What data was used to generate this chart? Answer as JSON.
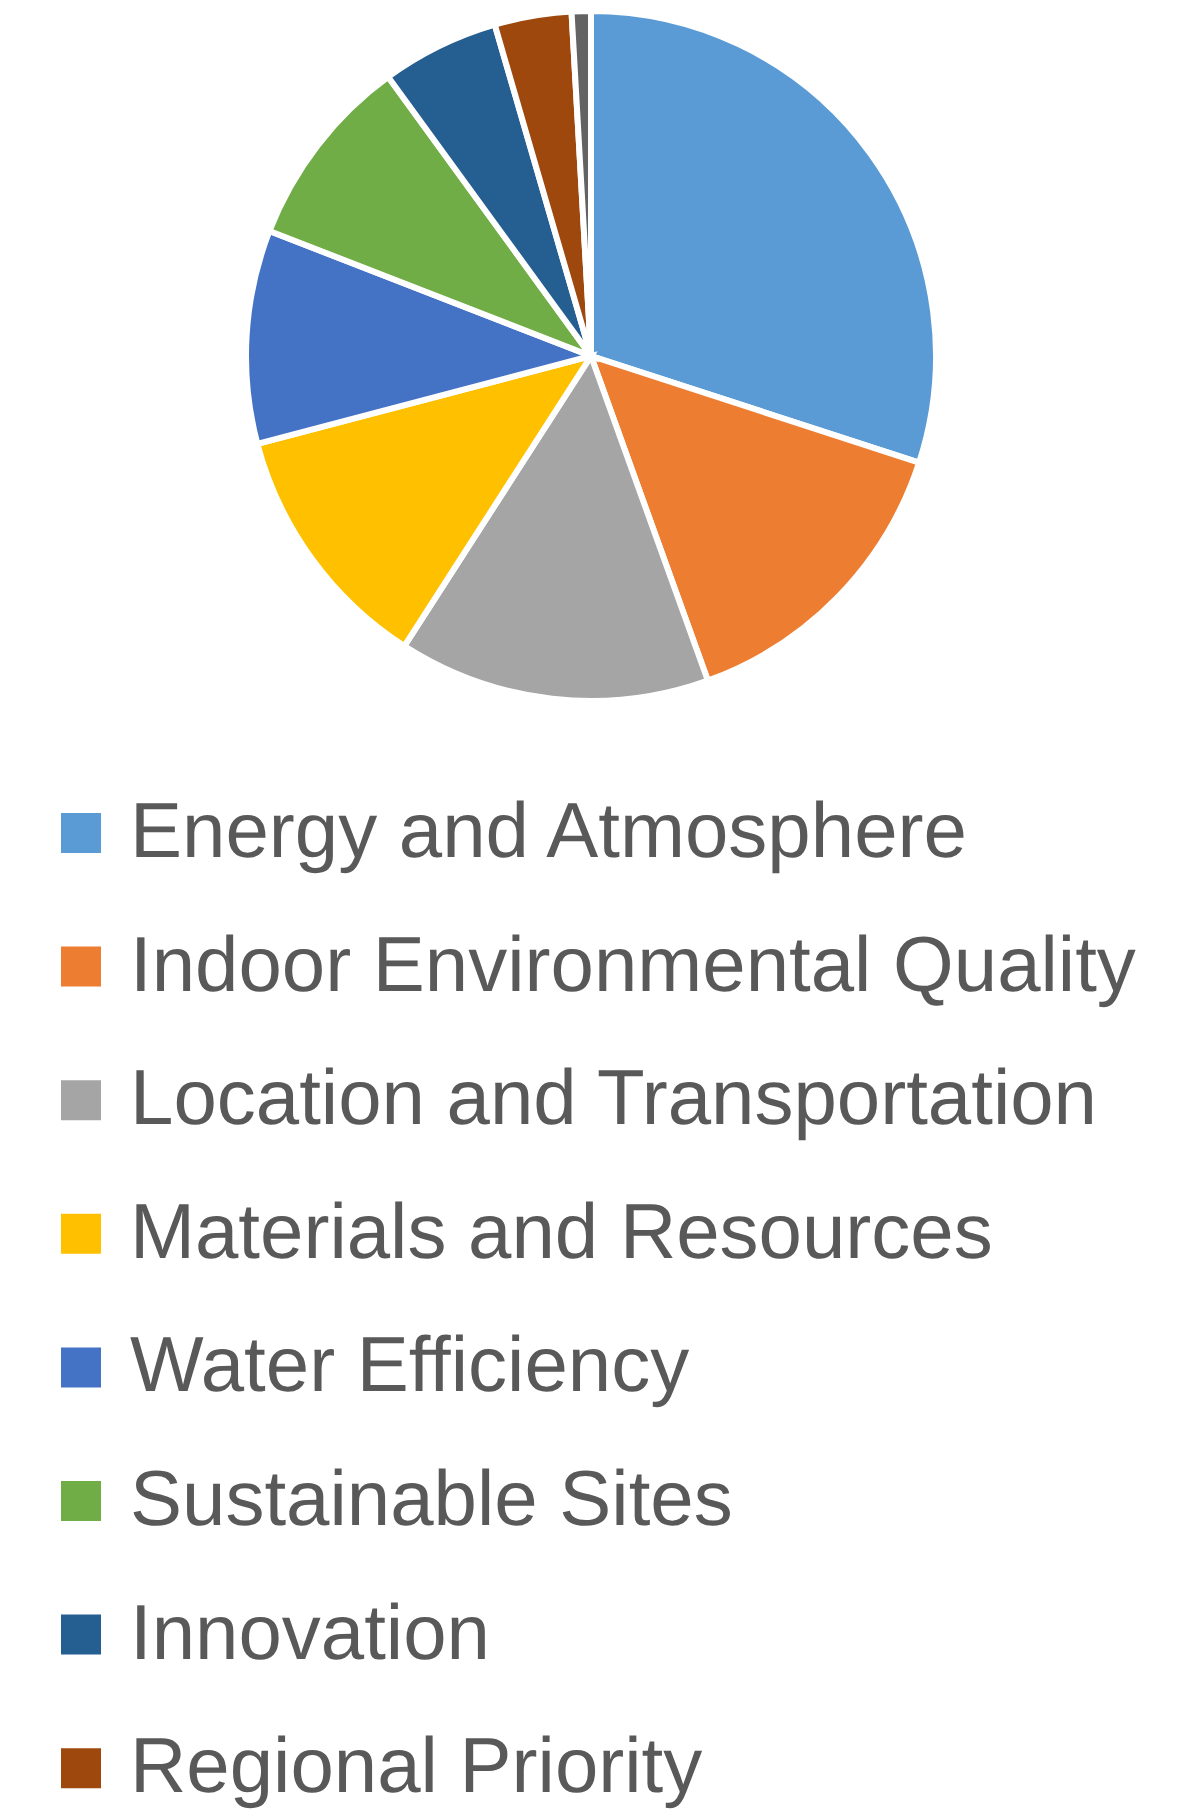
{
  "chart_data": {
    "type": "pie",
    "categories": [
      "Energy and Atmosphere",
      "Indoor Environmental Quality",
      "Location and Transportation",
      "Materials and Resources",
      "Water Efficiency",
      "Sustainable Sites",
      "Innovation",
      "Regional Priority",
      null
    ],
    "values": [
      30.0,
      14.5,
      14.6,
      11.8,
      10.0,
      9.1,
      5.5,
      3.6,
      0.9
    ],
    "colors": [
      "#5b9bd5",
      "#ed7d31",
      "#a5a5a5",
      "#ffc000",
      "#4472c4",
      "#70ad47",
      "#255e91",
      "#9e480e",
      "#636363"
    ],
    "legend": "bottom"
  }
}
